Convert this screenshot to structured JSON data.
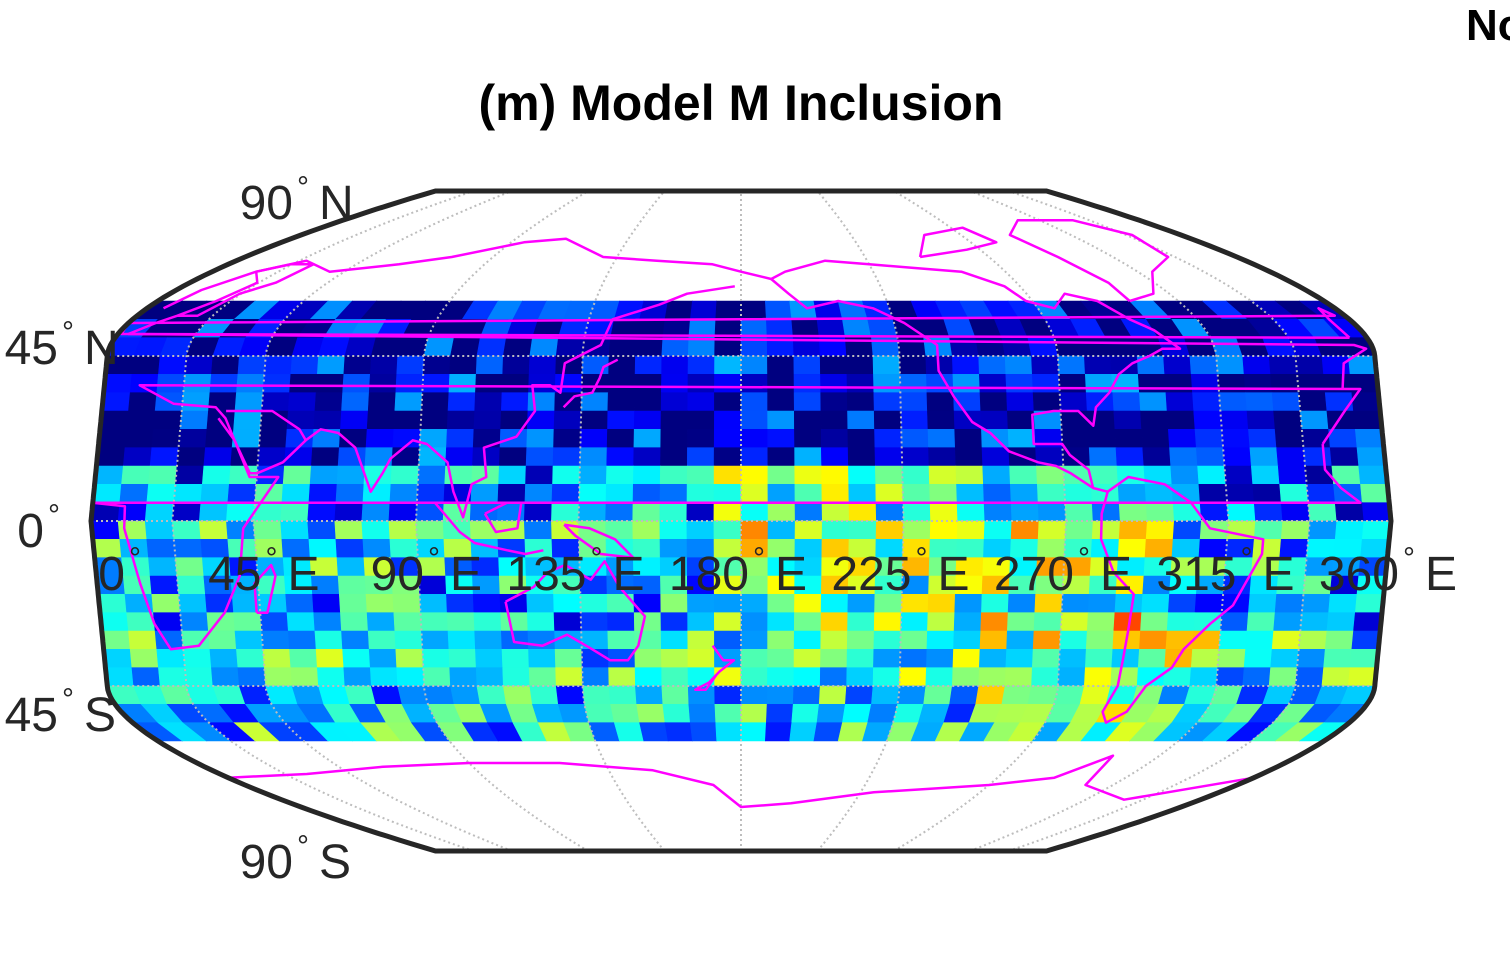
{
  "figure": {
    "title": "(m) Model M Inclusion",
    "corner_label": "No"
  },
  "map": {
    "projection": "pseudocylindrical (Robinson-like), central meridian 180°",
    "lon_range": [
      0,
      360
    ],
    "lat_range": [
      -90,
      90
    ],
    "data_lat_range": [
      -60,
      60
    ],
    "colormap": "jet",
    "coastline_color": "#ff00ff",
    "frame_color": "#262626",
    "graticule_color": "#bdbdbd",
    "graticule_style": "dotted",
    "lat_labels": [
      {
        "lat": 90,
        "text": "90",
        "hemi": "N"
      },
      {
        "lat": 45,
        "text": "45",
        "hemi": "N"
      },
      {
        "lat": 0,
        "text": "0",
        "hemi": ""
      },
      {
        "lat": -45,
        "text": "45",
        "hemi": "S"
      },
      {
        "lat": -90,
        "text": "90",
        "hemi": "S"
      }
    ],
    "lon_labels": [
      {
        "lon": 0,
        "text": "0",
        "hemi": ""
      },
      {
        "lon": 45,
        "text": "45",
        "hemi": "E"
      },
      {
        "lon": 90,
        "text": "90",
        "hemi": "E"
      },
      {
        "lon": 135,
        "text": "135",
        "hemi": "E"
      },
      {
        "lon": 180,
        "text": "180",
        "hemi": "E"
      },
      {
        "lon": 225,
        "text": "225",
        "hemi": "E"
      },
      {
        "lon": 270,
        "text": "270",
        "hemi": "E"
      },
      {
        "lon": 315,
        "text": "315",
        "hemi": "E"
      },
      {
        "lon": 360,
        "text": "360",
        "hemi": "E"
      }
    ],
    "meridians": [
      0,
      22.5,
      45,
      90,
      135,
      180,
      225,
      270,
      315,
      337.5,
      360
    ],
    "parallels": [
      45,
      0,
      -45
    ],
    "field_band_means": [
      {
        "lat_band": "60N-45N",
        "level": 0.05
      },
      {
        "lat_band": "45N-15N",
        "level": 0.08
      },
      {
        "lat_band": "15N-0",
        "level": 0.25
      },
      {
        "lat_band": "0-15S",
        "level": 0.35
      },
      {
        "lat_band": "15S-30S",
        "level": 0.3
      },
      {
        "lat_band": "30S-45S",
        "level": 0.4
      },
      {
        "lat_band": "45S-60S",
        "level": 0.35
      }
    ]
  }
}
